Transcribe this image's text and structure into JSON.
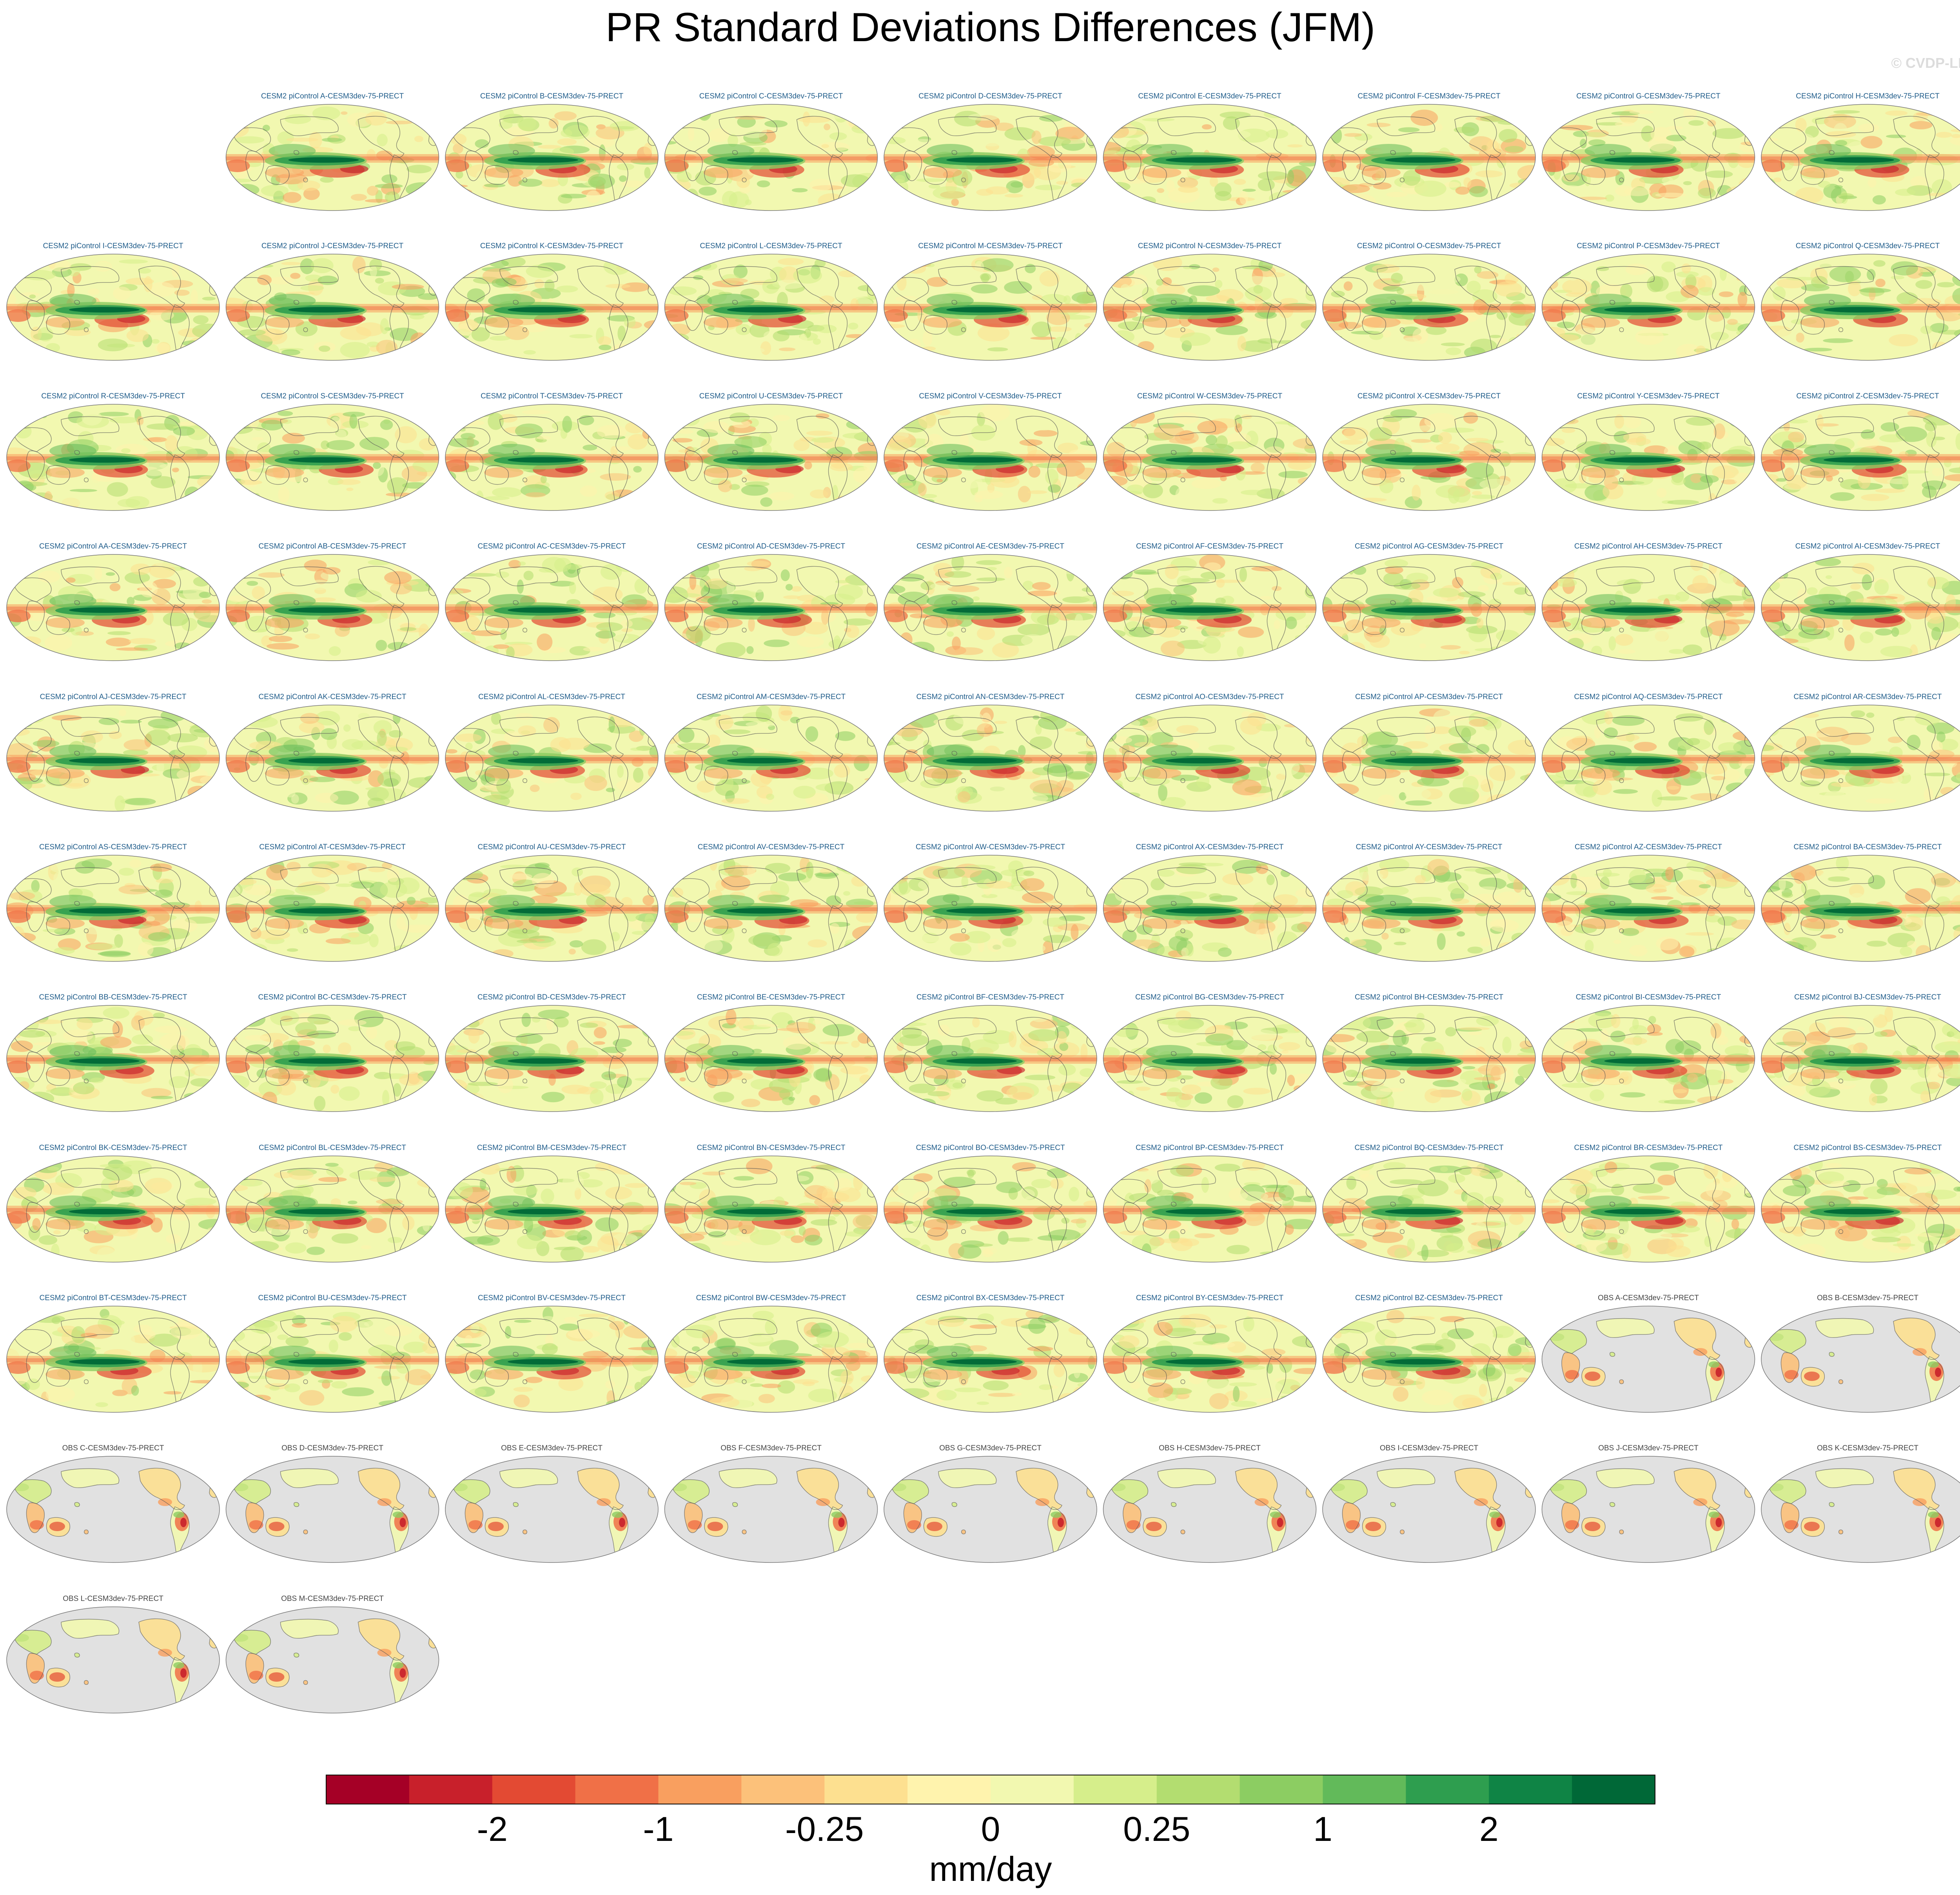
{
  "title": "PR Standard Deviations Differences (JFM)",
  "watermark": "© CVDP-LE",
  "colors": {
    "model_title": "#1f5c8a",
    "obs_title": "#444444",
    "land_obs": "#e1e1e1",
    "coast": "#555555"
  },
  "panels": [
    {
      "label": "CESM2 piControl A-CESM3dev-75-PRECT",
      "kind": "model"
    },
    {
      "label": "CESM2 piControl B-CESM3dev-75-PRECT",
      "kind": "model"
    },
    {
      "label": "CESM2 piControl C-CESM3dev-75-PRECT",
      "kind": "model"
    },
    {
      "label": "CESM2 piControl D-CESM3dev-75-PRECT",
      "kind": "model"
    },
    {
      "label": "CESM2 piControl E-CESM3dev-75-PRECT",
      "kind": "model"
    },
    {
      "label": "CESM2 piControl F-CESM3dev-75-PRECT",
      "kind": "model"
    },
    {
      "label": "CESM2 piControl G-CESM3dev-75-PRECT",
      "kind": "model"
    },
    {
      "label": "CESM2 piControl H-CESM3dev-75-PRECT",
      "kind": "model"
    },
    {
      "label": "CESM2 piControl I-CESM3dev-75-PRECT",
      "kind": "model"
    },
    {
      "label": "CESM2 piControl J-CESM3dev-75-PRECT",
      "kind": "model"
    },
    {
      "label": "CESM2 piControl K-CESM3dev-75-PRECT",
      "kind": "model"
    },
    {
      "label": "CESM2 piControl L-CESM3dev-75-PRECT",
      "kind": "model"
    },
    {
      "label": "CESM2 piControl M-CESM3dev-75-PRECT",
      "kind": "model"
    },
    {
      "label": "CESM2 piControl N-CESM3dev-75-PRECT",
      "kind": "model"
    },
    {
      "label": "CESM2 piControl O-CESM3dev-75-PRECT",
      "kind": "model"
    },
    {
      "label": "CESM2 piControl P-CESM3dev-75-PRECT",
      "kind": "model"
    },
    {
      "label": "CESM2 piControl Q-CESM3dev-75-PRECT",
      "kind": "model"
    },
    {
      "label": "CESM2 piControl R-CESM3dev-75-PRECT",
      "kind": "model"
    },
    {
      "label": "CESM2 piControl S-CESM3dev-75-PRECT",
      "kind": "model"
    },
    {
      "label": "CESM2 piControl T-CESM3dev-75-PRECT",
      "kind": "model"
    },
    {
      "label": "CESM2 piControl U-CESM3dev-75-PRECT",
      "kind": "model"
    },
    {
      "label": "CESM2 piControl V-CESM3dev-75-PRECT",
      "kind": "model"
    },
    {
      "label": "CESM2 piControl W-CESM3dev-75-PRECT",
      "kind": "model"
    },
    {
      "label": "CESM2 piControl X-CESM3dev-75-PRECT",
      "kind": "model"
    },
    {
      "label": "CESM2 piControl Y-CESM3dev-75-PRECT",
      "kind": "model"
    },
    {
      "label": "CESM2 piControl Z-CESM3dev-75-PRECT",
      "kind": "model"
    },
    {
      "label": "CESM2 piControl AA-CESM3dev-75-PRECT",
      "kind": "model"
    },
    {
      "label": "CESM2 piControl AB-CESM3dev-75-PRECT",
      "kind": "model"
    },
    {
      "label": "CESM2 piControl AC-CESM3dev-75-PRECT",
      "kind": "model"
    },
    {
      "label": "CESM2 piControl AD-CESM3dev-75-PRECT",
      "kind": "model"
    },
    {
      "label": "CESM2 piControl AE-CESM3dev-75-PRECT",
      "kind": "model"
    },
    {
      "label": "CESM2 piControl AF-CESM3dev-75-PRECT",
      "kind": "model"
    },
    {
      "label": "CESM2 piControl AG-CESM3dev-75-PRECT",
      "kind": "model"
    },
    {
      "label": "CESM2 piControl AH-CESM3dev-75-PRECT",
      "kind": "model"
    },
    {
      "label": "CESM2 piControl AI-CESM3dev-75-PRECT",
      "kind": "model"
    },
    {
      "label": "CESM2 piControl AJ-CESM3dev-75-PRECT",
      "kind": "model"
    },
    {
      "label": "CESM2 piControl AK-CESM3dev-75-PRECT",
      "kind": "model"
    },
    {
      "label": "CESM2 piControl AL-CESM3dev-75-PRECT",
      "kind": "model"
    },
    {
      "label": "CESM2 piControl AM-CESM3dev-75-PRECT",
      "kind": "model"
    },
    {
      "label": "CESM2 piControl AN-CESM3dev-75-PRECT",
      "kind": "model"
    },
    {
      "label": "CESM2 piControl AO-CESM3dev-75-PRECT",
      "kind": "model"
    },
    {
      "label": "CESM2 piControl AP-CESM3dev-75-PRECT",
      "kind": "model"
    },
    {
      "label": "CESM2 piControl AQ-CESM3dev-75-PRECT",
      "kind": "model"
    },
    {
      "label": "CESM2 piControl AR-CESM3dev-75-PRECT",
      "kind": "model"
    },
    {
      "label": "CESM2 piControl AS-CESM3dev-75-PRECT",
      "kind": "model"
    },
    {
      "label": "CESM2 piControl AT-CESM3dev-75-PRECT",
      "kind": "model"
    },
    {
      "label": "CESM2 piControl AU-CESM3dev-75-PRECT",
      "kind": "model"
    },
    {
      "label": "CESM2 piControl AV-CESM3dev-75-PRECT",
      "kind": "model"
    },
    {
      "label": "CESM2 piControl AW-CESM3dev-75-PRECT",
      "kind": "model"
    },
    {
      "label": "CESM2 piControl AX-CESM3dev-75-PRECT",
      "kind": "model"
    },
    {
      "label": "CESM2 piControl AY-CESM3dev-75-PRECT",
      "kind": "model"
    },
    {
      "label": "CESM2 piControl AZ-CESM3dev-75-PRECT",
      "kind": "model"
    },
    {
      "label": "CESM2 piControl BA-CESM3dev-75-PRECT",
      "kind": "model"
    },
    {
      "label": "CESM2 piControl BB-CESM3dev-75-PRECT",
      "kind": "model"
    },
    {
      "label": "CESM2 piControl BC-CESM3dev-75-PRECT",
      "kind": "model"
    },
    {
      "label": "CESM2 piControl BD-CESM3dev-75-PRECT",
      "kind": "model"
    },
    {
      "label": "CESM2 piControl BE-CESM3dev-75-PRECT",
      "kind": "model"
    },
    {
      "label": "CESM2 piControl BF-CESM3dev-75-PRECT",
      "kind": "model"
    },
    {
      "label": "CESM2 piControl BG-CESM3dev-75-PRECT",
      "kind": "model"
    },
    {
      "label": "CESM2 piControl BH-CESM3dev-75-PRECT",
      "kind": "model"
    },
    {
      "label": "CESM2 piControl BI-CESM3dev-75-PRECT",
      "kind": "model"
    },
    {
      "label": "CESM2 piControl BJ-CESM3dev-75-PRECT",
      "kind": "model"
    },
    {
      "label": "CESM2 piControl BK-CESM3dev-75-PRECT",
      "kind": "model"
    },
    {
      "label": "CESM2 piControl BL-CESM3dev-75-PRECT",
      "kind": "model"
    },
    {
      "label": "CESM2 piControl BM-CESM3dev-75-PRECT",
      "kind": "model"
    },
    {
      "label": "CESM2 piControl BN-CESM3dev-75-PRECT",
      "kind": "model"
    },
    {
      "label": "CESM2 piControl BO-CESM3dev-75-PRECT",
      "kind": "model"
    },
    {
      "label": "CESM2 piControl BP-CESM3dev-75-PRECT",
      "kind": "model"
    },
    {
      "label": "CESM2 piControl BQ-CESM3dev-75-PRECT",
      "kind": "model"
    },
    {
      "label": "CESM2 piControl BR-CESM3dev-75-PRECT",
      "kind": "model"
    },
    {
      "label": "CESM2 piControl BS-CESM3dev-75-PRECT",
      "kind": "model"
    },
    {
      "label": "CESM2 piControl BT-CESM3dev-75-PRECT",
      "kind": "model"
    },
    {
      "label": "CESM2 piControl BU-CESM3dev-75-PRECT",
      "kind": "model"
    },
    {
      "label": "CESM2 piControl BV-CESM3dev-75-PRECT",
      "kind": "model"
    },
    {
      "label": "CESM2 piControl BW-CESM3dev-75-PRECT",
      "kind": "model"
    },
    {
      "label": "CESM2 piControl BX-CESM3dev-75-PRECT",
      "kind": "model"
    },
    {
      "label": "CESM2 piControl BY-CESM3dev-75-PRECT",
      "kind": "model"
    },
    {
      "label": "CESM2 piControl BZ-CESM3dev-75-PRECT",
      "kind": "model"
    },
    {
      "label": "OBS A-CESM3dev-75-PRECT",
      "kind": "obs"
    },
    {
      "label": "OBS B-CESM3dev-75-PRECT",
      "kind": "obs"
    },
    {
      "label": "OBS C-CESM3dev-75-PRECT",
      "kind": "obs"
    },
    {
      "label": "OBS D-CESM3dev-75-PRECT",
      "kind": "obs"
    },
    {
      "label": "OBS E-CESM3dev-75-PRECT",
      "kind": "obs"
    },
    {
      "label": "OBS F-CESM3dev-75-PRECT",
      "kind": "obs"
    },
    {
      "label": "OBS G-CESM3dev-75-PRECT",
      "kind": "obs"
    },
    {
      "label": "OBS H-CESM3dev-75-PRECT",
      "kind": "obs"
    },
    {
      "label": "OBS I-CESM3dev-75-PRECT",
      "kind": "obs"
    },
    {
      "label": "OBS J-CESM3dev-75-PRECT",
      "kind": "obs"
    },
    {
      "label": "OBS K-CESM3dev-75-PRECT",
      "kind": "obs"
    },
    {
      "label": "OBS L-CESM3dev-75-PRECT",
      "kind": "obs"
    },
    {
      "label": "OBS M-CESM3dev-75-PRECT",
      "kind": "obs"
    }
  ],
  "chart_data": {
    "type": "heatmap",
    "title": "PR Standard Deviations Differences (JFM)",
    "units": "mm/day",
    "projection": "Robinson",
    "colorbar": {
      "levels": [
        -3,
        -2.5,
        -2,
        -1.5,
        -1,
        -0.5,
        -0.25,
        -0.1,
        0,
        0.1,
        0.25,
        0.5,
        1,
        1.5,
        2,
        2.5,
        3
      ],
      "tick_values": [
        -2,
        -1,
        -0.25,
        0,
        0.25,
        1,
        2
      ],
      "tick_labels": [
        "-2",
        "-1",
        "-0.25",
        "0",
        "0.25",
        "1",
        "2"
      ],
      "colors": [
        "#a50026",
        "#c8202b",
        "#e34a33",
        "#f07047",
        "#f99f5f",
        "#fcc17a",
        "#fde090",
        "#fff3ad",
        "#f2f8b0",
        "#d6ee8b",
        "#b3dd70",
        "#8ccd62",
        "#62ba5a",
        "#2e9e4f",
        "#0f8445",
        "#006837"
      ],
      "orientation": "horizontal"
    }
  }
}
